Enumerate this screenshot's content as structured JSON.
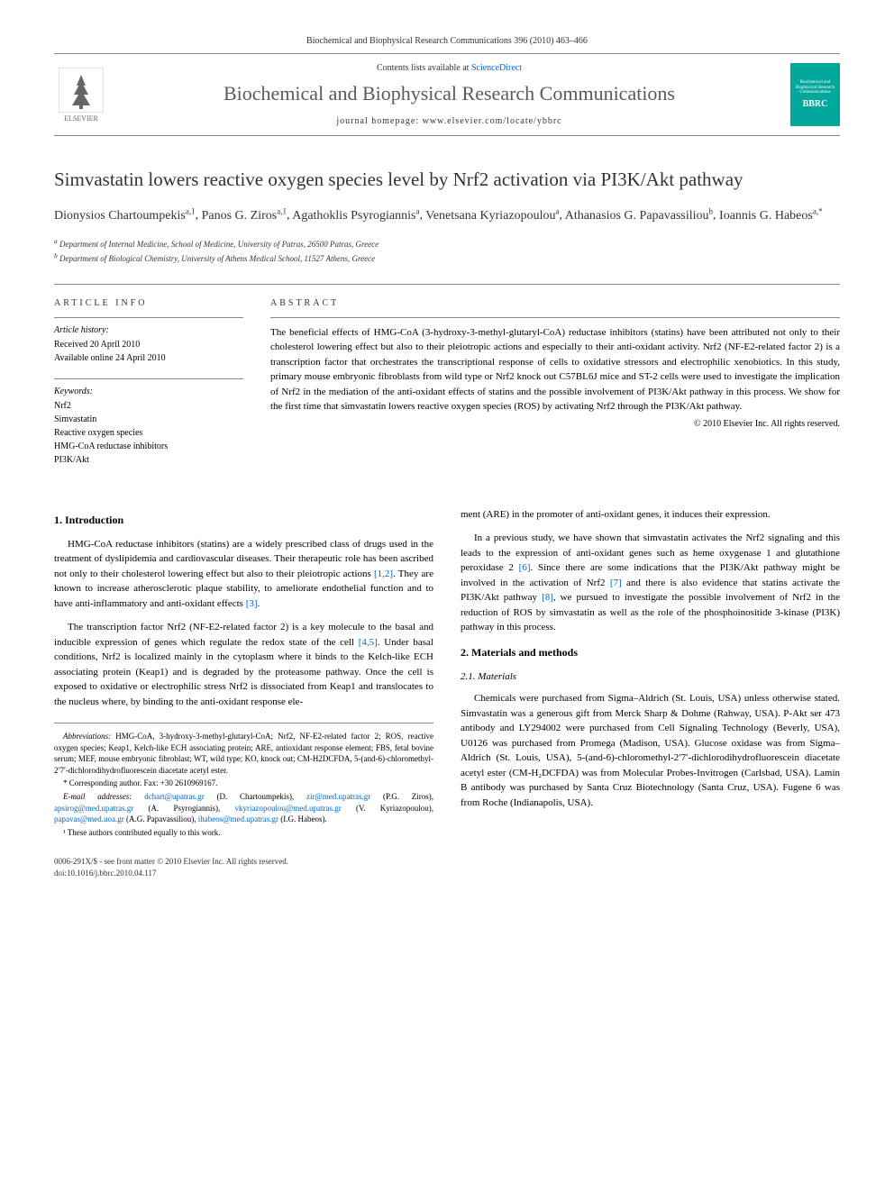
{
  "header": {
    "citation": "Biochemical and Biophysical Research Communications 396 (2010) 463–466",
    "contents_prefix": "Contents lists available at ",
    "contents_link": "ScienceDirect",
    "journal_name": "Biochemical and Biophysical Research Communications",
    "homepage_prefix": "journal homepage: ",
    "homepage_url": "www.elsevier.com/locate/ybbrc",
    "publisher": "ELSEVIER",
    "cover_text": "BBRC"
  },
  "article": {
    "title": "Simvastatin lowers reactive oxygen species level by Nrf2 activation via PI3K/Akt pathway",
    "authors_html": "Dionysios Chartoumpekis",
    "authors": [
      {
        "name": "Dionysios Chartoumpekis",
        "sup": "a,1"
      },
      {
        "name": "Panos G. Ziros",
        "sup": "a,1"
      },
      {
        "name": "Agathoklis Psyrogiannis",
        "sup": "a"
      },
      {
        "name": "Venetsana Kyriazopoulou",
        "sup": "a"
      },
      {
        "name": "Athanasios G. Papavassiliou",
        "sup": "b"
      },
      {
        "name": "Ioannis G. Habeos",
        "sup": "a,*"
      }
    ],
    "affiliations": [
      {
        "sup": "a",
        "text": "Department of Internal Medicine, School of Medicine, University of Patras, 26500 Patras, Greece"
      },
      {
        "sup": "b",
        "text": "Department of Biological Chemistry, University of Athens Medical School, 11527 Athens, Greece"
      }
    ]
  },
  "info": {
    "header": "ARTICLE INFO",
    "history_label": "Article history:",
    "history": [
      "Received 20 April 2010",
      "Available online 24 April 2010"
    ],
    "keywords_label": "Keywords:",
    "keywords": [
      "Nrf2",
      "Simvastatin",
      "Reactive oxygen species",
      "HMG-CoA reductase inhibitors",
      "PI3K/Akt"
    ]
  },
  "abstract": {
    "header": "ABSTRACT",
    "text": "The beneficial effects of HMG-CoA (3-hydroxy-3-methyl-glutaryl-CoA) reductase inhibitors (statins) have been attributed not only to their cholesterol lowering effect but also to their pleiotropic actions and especially to their anti-oxidant activity. Nrf2 (NF-E2-related factor 2) is a transcription factor that orchestrates the transcriptional response of cells to oxidative stressors and electrophilic xenobiotics. In this study, primary mouse embryonic fibroblasts from wild type or Nrf2 knock out C57BL6J mice and ST-2 cells were used to investigate the implication of Nrf2 in the mediation of the anti-oxidant effects of statins and the possible involvement of PI3K/Akt pathway in this process. We show for the first time that simvastatin lowers reactive oxygen species (ROS) by activating Nrf2 through the PI3K/Akt pathway.",
    "copyright": "© 2010 Elsevier Inc. All rights reserved."
  },
  "body": {
    "left": {
      "section1_title": "1. Introduction",
      "para1": "HMG-CoA reductase inhibitors (statins) are a widely prescribed class of drugs used in the treatment of dyslipidemia and cardiovascular diseases. Their therapeutic role has been ascribed not only to their cholesterol lowering effect but also to their pleiotropic actions [1,2]. They are known to increase atherosclerotic plaque stability, to ameliorate endothelial function and to have anti-inflammatory and anti-oxidant effects [3].",
      "para2": "The transcription factor Nrf2 (NF-E2-related factor 2) is a key molecule to the basal and inducible expression of genes which regulate the redox state of the cell [4,5]. Under basal conditions, Nrf2 is localized mainly in the cytoplasm where it binds to the Kelch-like ECH associating protein (Keap1) and is degraded by the proteasome pathway. Once the cell is exposed to oxidative or electrophilic stress Nrf2 is dissociated from Keap1 and translocates to the nucleus where, by binding to the anti-oxidant response ele-",
      "ref12": "[1,2]",
      "ref3": "[3]",
      "ref45": "[4,5]"
    },
    "right": {
      "para1_cont": "ment (ARE) in the promoter of anti-oxidant genes, it induces their expression.",
      "para2": "In a previous study, we have shown that simvastatin activates the Nrf2 signaling and this leads to the expression of anti-oxidant genes such as heme oxygenase 1 and glutathione peroxidase 2 [6]. Since there are some indications that the PI3K/Akt pathway might be involved in the activation of Nrf2 [7] and there is also evidence that statins activate the PI3K/Akt pathway [8], we pursued to investigate the possible involvement of Nrf2 in the reduction of ROS by simvastatin as well as the role of the phosphoinositide 3-kinase (PI3K) pathway in this process.",
      "ref6": "[6]",
      "ref7": "[7]",
      "ref8": "[8]",
      "section2_title": "2. Materials and methods",
      "subsection21_title": "2.1. Materials",
      "para3": "Chemicals were purchased from Sigma–Aldrich (St. Louis, USA) unless otherwise stated. Simvastatin was a generous gift from Merck Sharp & Dohme (Rahway, USA). P-Akt ser 473 antibody and LY294002 were purchased from Cell Signaling Technology (Beverly, USA), U0126 was purchased from Promega (Madison, USA). Glucose oxidase was from Sigma–Aldrich (St. Louis, USA), 5-(and-6)-chloromethyl-2′7′-dichlorodihydrofluorescein diacetate acetyl ester (CM-H₂DCFDA) was from Molecular Probes-Invitrogen (Carlsbad, USA). Lamin B antibody was purchased by Santa Cruz Biotechnology (Santa Cruz, USA). Fugene 6 was from Roche (Indianapolis, USA)."
    }
  },
  "footnotes": {
    "abbrev_label": "Abbreviations:",
    "abbrev_text": " HMG-CoA, 3-hydroxy-3-methyl-glutaryl-CoA; Nrf2, NF-E2-related factor 2; ROS, reactive oxygen species; Keap1, Kelch-like ECH associating protein; ARE, antioxidant response element; FBS, fetal bovine serum; MEF, mouse embryonic fibroblast; WT, wild type; KO, knock out; CM-H2DCFDA, 5-(and-6)-chloromethyl-2′7′-dichlorodihydrofluorescein diacetate acetyl ester.",
    "corresponding": "* Corresponding author. Fax: +30 2610969167.",
    "email_label": "E-mail addresses:",
    "emails": [
      {
        "addr": "dchart@upatras.gr",
        "who": "(D. Chartoumpekis)"
      },
      {
        "addr": "zir@med.upatras.gr",
        "who": "(P.G. Ziros)"
      },
      {
        "addr": "apsirog@med.upatras.gr",
        "who": "(A. Psyrogiannis)"
      },
      {
        "addr": "vkyriazopoulou@med.upatras.gr",
        "who": "(V. Kyriazopoulou)"
      },
      {
        "addr": "papavas@med.uoa.gr",
        "who": "(A.G. Papavassiliou)"
      },
      {
        "addr": "ihabeos@med.upatras.gr",
        "who": "(I.G. Habeos)"
      }
    ],
    "equal_contrib": "¹ These authors contributed equally to this work."
  },
  "footer": {
    "issn": "0006-291X/$ - see front matter © 2010 Elsevier Inc. All rights reserved.",
    "doi": "doi:10.1016/j.bbrc.2010.04.117"
  },
  "colors": {
    "link": "#0066cc",
    "text": "#333333",
    "border": "#888888",
    "cover_bg": "#00a79d"
  }
}
